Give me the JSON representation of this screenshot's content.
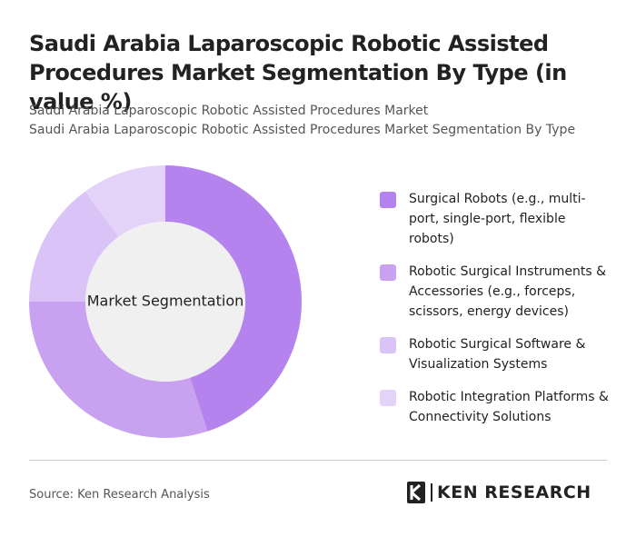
{
  "chart_data": {
    "type": "pie",
    "title": "Saudi Arabia Laparoscopic Robotic Assisted Procedures Market Segmentation By Type (in value %)",
    "subtitle": [
      "Saudi Arabia Laparoscopic Robotic Assisted Procedures Market",
      "Saudi Arabia Laparoscopic Robotic Assisted Procedures Market Segmentation By Type"
    ],
    "center_label": "Market Segmentation",
    "categories": [
      "Surgical Robots (e.g., multi-port, single-port, flexible robots)",
      "Robotic Surgical Instruments & Accessories (e.g., forceps, scissors, energy devices)",
      "Robotic Surgical Software & Visualization Systems",
      "Robotic Integration Platforms & Connectivity Solutions"
    ],
    "values": [
      45,
      30,
      15,
      10
    ],
    "colors": [
      "#b583ee",
      "#c8a2f1",
      "#dac3f6",
      "#e4d3f8"
    ],
    "source": "Source: Ken Research Analysis",
    "logo": "KEN RESEARCH"
  }
}
